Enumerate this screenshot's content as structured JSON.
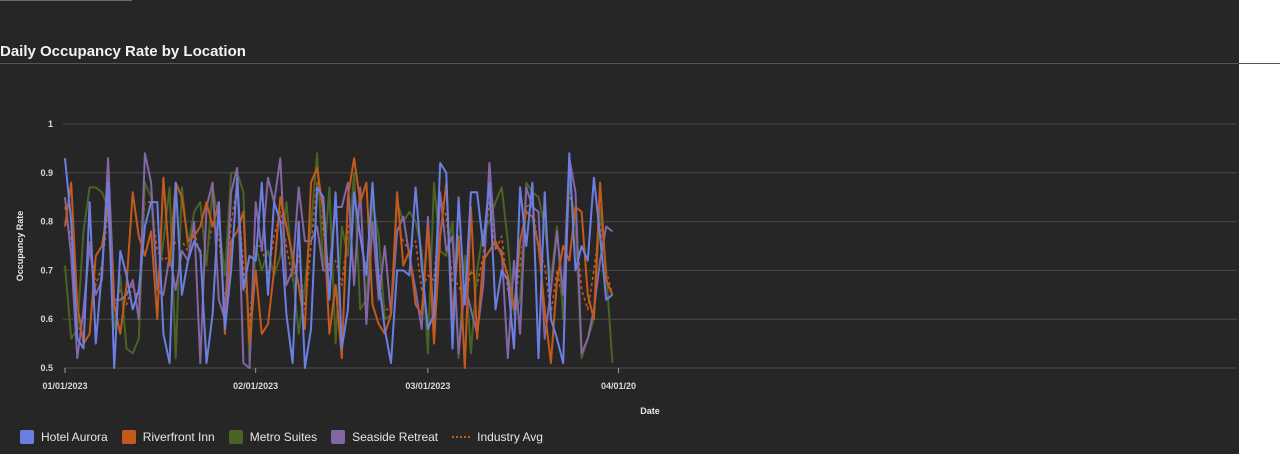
{
  "title": "Daily Occupancy Rate by Location",
  "chart_data": {
    "type": "line",
    "title": "Daily Occupancy Rate by Location",
    "xlabel": "Date",
    "ylabel": "Occupancy Rate",
    "ylim": [
      0.5,
      1
    ],
    "yticks": [
      0.5,
      0.6,
      0.7,
      0.8,
      0.9,
      1
    ],
    "xlim": [
      "2023-01-01",
      "2023-04-01"
    ],
    "xtick_labels": [
      "01/01/2023",
      "02/01/2023",
      "03/01/2023",
      "04/01/20"
    ],
    "x": [
      "01-01",
      "01-02",
      "01-03",
      "01-04",
      "01-05",
      "01-06",
      "01-07",
      "01-08",
      "01-09",
      "01-10",
      "01-11",
      "01-12",
      "01-13",
      "01-14",
      "01-15",
      "01-16",
      "01-17",
      "01-18",
      "01-19",
      "01-20",
      "01-21",
      "01-22",
      "01-23",
      "01-24",
      "01-25",
      "01-26",
      "01-27",
      "01-28",
      "01-29",
      "01-30",
      "01-31",
      "02-01",
      "02-02",
      "02-03",
      "02-04",
      "02-05",
      "02-06",
      "02-07",
      "02-08",
      "02-09",
      "02-10",
      "02-11",
      "02-12",
      "02-13",
      "02-14",
      "02-15",
      "02-16",
      "02-17",
      "02-18",
      "02-19",
      "02-20",
      "02-21",
      "02-22",
      "02-23",
      "02-24",
      "02-25",
      "02-26",
      "02-27",
      "02-28",
      "03-01",
      "03-02",
      "03-03",
      "03-04",
      "03-05",
      "03-06",
      "03-07",
      "03-08",
      "03-09",
      "03-10",
      "03-11",
      "03-12",
      "03-13",
      "03-14",
      "03-15",
      "03-16",
      "03-17",
      "03-18",
      "03-19",
      "03-20",
      "03-21",
      "03-22",
      "03-23",
      "03-24",
      "03-25",
      "03-26",
      "03-27",
      "03-28",
      "03-29",
      "03-30",
      "03-31"
    ],
    "grid": true,
    "legend_position": "bottom-left",
    "series": [
      {
        "name": "Hotel Aurora",
        "color": "#6b7fe3",
        "style": "solid",
        "values": [
          0.93,
          0.8,
          0.56,
          0.54,
          0.84,
          0.55,
          0.7,
          0.88,
          0.5,
          0.74,
          0.69,
          0.62,
          0.66,
          0.79,
          0.84,
          0.84,
          0.57,
          0.51,
          0.88,
          0.65,
          0.72,
          0.76,
          0.74,
          0.51,
          0.61,
          0.84,
          0.58,
          0.7,
          0.89,
          0.66,
          0.73,
          0.72,
          0.88,
          0.65,
          0.84,
          0.8,
          0.61,
          0.51,
          0.8,
          0.5,
          0.58,
          0.87,
          0.85,
          0.64,
          0.86,
          0.54,
          0.62,
          0.86,
          0.77,
          0.69,
          0.88,
          0.68,
          0.58,
          0.51,
          0.7,
          0.7,
          0.69,
          0.87,
          0.71,
          0.58,
          0.61,
          0.92,
          0.9,
          0.54,
          0.85,
          0.63,
          0.86,
          0.86,
          0.75,
          0.88,
          0.62,
          0.7,
          0.68,
          0.54,
          0.87,
          0.75,
          0.88,
          0.52,
          0.86,
          0.6,
          0.56,
          0.51,
          0.94,
          0.7,
          0.75,
          0.72,
          0.89,
          0.77,
          0.64,
          0.65
        ]
      },
      {
        "name": "Riverfront Inn",
        "color": "#c35a1c",
        "style": "solid",
        "values": [
          0.79,
          0.88,
          0.63,
          0.55,
          0.57,
          0.73,
          0.75,
          0.83,
          0.63,
          0.57,
          0.67,
          0.86,
          0.77,
          0.73,
          0.78,
          0.6,
          0.89,
          0.71,
          0.88,
          0.85,
          0.76,
          0.77,
          0.79,
          0.84,
          0.79,
          0.84,
          0.57,
          0.76,
          0.78,
          0.82,
          0.55,
          0.7,
          0.57,
          0.59,
          0.7,
          0.85,
          0.79,
          0.73,
          0.67,
          0.58,
          0.88,
          0.91,
          0.82,
          0.57,
          0.67,
          0.52,
          0.85,
          0.93,
          0.84,
          0.88,
          0.63,
          0.59,
          0.57,
          0.61,
          0.86,
          0.71,
          0.74,
          0.63,
          0.61,
          0.79,
          0.55,
          0.77,
          0.88,
          0.6,
          0.77,
          0.5,
          0.83,
          0.56,
          0.72,
          0.74,
          0.76,
          0.73,
          0.69,
          0.62,
          0.76,
          0.82,
          0.81,
          0.75,
          0.62,
          0.51,
          0.68,
          0.75,
          0.72,
          0.83,
          0.82,
          0.65,
          0.6,
          0.88,
          0.68,
          0.65
        ]
      },
      {
        "name": "Metro Suites",
        "color": "#4a6224",
        "style": "solid",
        "values": [
          0.71,
          0.56,
          0.58,
          0.78,
          0.87,
          0.87,
          0.86,
          0.83,
          0.58,
          0.69,
          0.54,
          0.53,
          0.56,
          0.88,
          0.85,
          0.67,
          0.76,
          0.87,
          0.52,
          0.87,
          0.75,
          0.82,
          0.84,
          0.71,
          0.87,
          0.8,
          0.69,
          0.9,
          0.9,
          0.86,
          0.51,
          0.75,
          0.7,
          0.74,
          0.69,
          0.73,
          0.84,
          0.7,
          0.57,
          0.67,
          0.79,
          0.94,
          0.7,
          0.87,
          0.55,
          0.79,
          0.73,
          0.9,
          0.62,
          0.64,
          0.84,
          0.77,
          0.6,
          0.61,
          0.84,
          0.8,
          0.82,
          0.8,
          0.74,
          0.53,
          0.88,
          0.74,
          0.73,
          0.8,
          0.52,
          0.73,
          0.53,
          0.7,
          0.78,
          0.8,
          0.84,
          0.87,
          0.76,
          0.61,
          0.64,
          0.88,
          0.86,
          0.85,
          0.79,
          0.68,
          0.79,
          0.6,
          0.88,
          0.8,
          0.52,
          0.56,
          0.6,
          0.83,
          0.7,
          0.51
        ]
      },
      {
        "name": "Seaside Retreat",
        "color": "#8566a5",
        "style": "solid",
        "values": [
          0.85,
          0.73,
          0.52,
          0.62,
          0.75,
          0.65,
          0.68,
          0.93,
          0.64,
          0.64,
          0.65,
          0.68,
          0.6,
          0.94,
          0.88,
          0.66,
          0.65,
          0.73,
          0.66,
          0.74,
          0.72,
          0.8,
          0.51,
          0.83,
          0.88,
          0.64,
          0.6,
          0.86,
          0.91,
          0.51,
          0.5,
          0.84,
          0.74,
          0.89,
          0.84,
          0.93,
          0.67,
          0.7,
          0.87,
          0.76,
          0.76,
          0.79,
          0.7,
          0.7,
          0.83,
          0.83,
          0.88,
          0.67,
          0.87,
          0.59,
          0.8,
          0.64,
          0.75,
          0.61,
          0.78,
          0.81,
          0.73,
          0.66,
          0.58,
          0.81,
          0.58,
          0.86,
          0.74,
          0.77,
          0.53,
          0.67,
          0.62,
          0.57,
          0.67,
          0.92,
          0.75,
          0.74,
          0.52,
          0.72,
          0.57,
          0.87,
          0.83,
          0.82,
          0.56,
          0.66,
          0.78,
          0.65,
          0.93,
          0.86,
          0.53,
          0.56,
          0.62,
          0.72,
          0.79,
          0.78
        ]
      },
      {
        "name": "Industry Avg",
        "color": "#c35a1c",
        "style": "dotted",
        "values": [
          0.83,
          0.76,
          0.57,
          0.6,
          0.76,
          0.67,
          0.71,
          0.82,
          0.62,
          0.66,
          0.63,
          0.67,
          0.64,
          0.84,
          0.84,
          0.74,
          0.72,
          0.73,
          0.76,
          0.76,
          0.74,
          0.78,
          0.73,
          0.73,
          0.8,
          0.77,
          0.63,
          0.8,
          0.87,
          0.71,
          0.59,
          0.75,
          0.75,
          0.69,
          0.77,
          0.82,
          0.75,
          0.68,
          0.73,
          0.62,
          0.75,
          0.88,
          0.78,
          0.7,
          0.72,
          0.67,
          0.78,
          0.85,
          0.77,
          0.7,
          0.79,
          0.7,
          0.62,
          0.62,
          0.79,
          0.76,
          0.74,
          0.76,
          0.66,
          0.69,
          0.68,
          0.85,
          0.81,
          0.68,
          0.67,
          0.63,
          0.7,
          0.67,
          0.73,
          0.84,
          0.74,
          0.77,
          0.66,
          0.62,
          0.71,
          0.83,
          0.84,
          0.74,
          0.71,
          0.61,
          0.7,
          0.63,
          0.86,
          0.8,
          0.66,
          0.62,
          0.7,
          0.8,
          0.7,
          0.65
        ]
      }
    ]
  }
}
